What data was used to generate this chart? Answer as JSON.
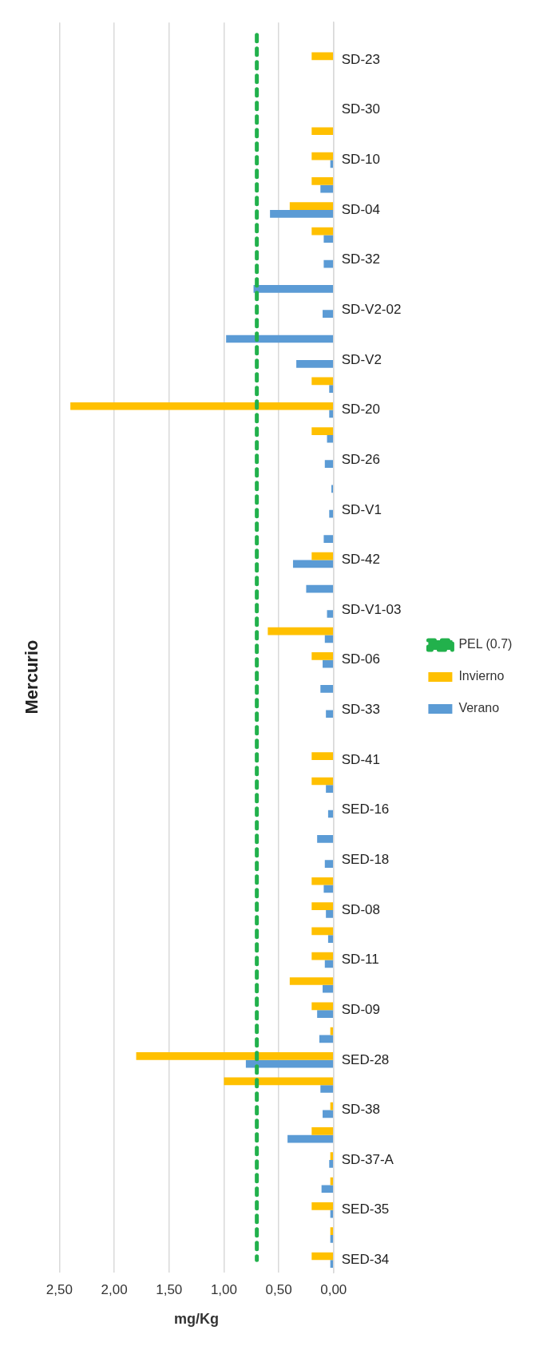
{
  "chart_data": {
    "type": "bar",
    "orientation": "horizontal",
    "title": "Mercurio",
    "xlabel": "mg/Kg",
    "categories": [
      null,
      "SD-23",
      null,
      "SD-30",
      null,
      "SD-10",
      null,
      "SD-04",
      null,
      "SD-32",
      null,
      "SD-V2-02",
      null,
      "SD-V2",
      null,
      "SD-20",
      null,
      "SD-26",
      null,
      "SD-V1",
      null,
      "SD-42",
      null,
      "SD-V1-03",
      null,
      "SD-06",
      null,
      "SD-33",
      null,
      "SD-41",
      null,
      "SED-16",
      null,
      "SED-18",
      null,
      "SD-08",
      null,
      "SD-11",
      null,
      "SD-09",
      null,
      "SED-28",
      null,
      "SD-38",
      null,
      "SD-37-A",
      null,
      "SED-35",
      null,
      "SED-34"
    ],
    "series": [
      {
        "name": "PEL (0.7)",
        "type": "line",
        "color": "#22b14c",
        "line_style": "dashed",
        "values": [
          0.7,
          0.7,
          0.7,
          0.7,
          0.7,
          0.7,
          0.7,
          0.7,
          0.7,
          0.7,
          0.7,
          0.7,
          0.7,
          0.7,
          0.7,
          0.7,
          0.7,
          0.7,
          0.7,
          0.7,
          0.7,
          0.7,
          0.7,
          0.7,
          0.7,
          0.7,
          0.7,
          0.7,
          0.7,
          0.7,
          0.7,
          0.7,
          0.7,
          0.7,
          0.7,
          0.7,
          0.7,
          0.7,
          0.7,
          0.7,
          0.7,
          0.7,
          0.7,
          0.7,
          0.7,
          0.7,
          0.7,
          0.7,
          0.7,
          0.7
        ]
      },
      {
        "name": "Invierno",
        "type": "bar",
        "color": "#ffc000",
        "values": [
          null,
          0.2,
          null,
          null,
          0.2,
          0.2,
          0.2,
          0.4,
          0.2,
          null,
          null,
          null,
          null,
          null,
          0.2,
          2.4,
          0.2,
          null,
          null,
          null,
          null,
          0.2,
          null,
          null,
          0.6,
          0.2,
          null,
          null,
          null,
          0.2,
          0.2,
          null,
          null,
          null,
          0.2,
          0.2,
          0.2,
          0.2,
          0.4,
          0.2,
          0.03,
          1.8,
          1.0,
          0.03,
          0.2,
          0.03,
          0.03,
          0.2,
          0.03,
          0.2
        ]
      },
      {
        "name": "Verano",
        "type": "bar",
        "color": "#5b9bd5",
        "values": [
          null,
          null,
          null,
          null,
          null,
          0.03,
          0.12,
          0.58,
          0.09,
          0.09,
          0.73,
          0.1,
          0.98,
          0.34,
          0.04,
          0.04,
          0.06,
          0.08,
          0.02,
          0.04,
          0.09,
          0.37,
          0.25,
          0.06,
          0.08,
          0.1,
          0.12,
          0.07,
          null,
          null,
          0.07,
          0.05,
          0.15,
          0.08,
          0.09,
          0.07,
          0.05,
          0.08,
          0.1,
          0.15,
          0.13,
          0.8,
          0.12,
          0.1,
          0.42,
          0.04,
          0.11,
          0.03,
          0.03,
          0.03
        ]
      }
    ],
    "xlim": [
      2.5,
      0
    ],
    "xticks": [
      {
        "value": 2.5,
        "label": "2,50"
      },
      {
        "value": 2,
        "label": "2,00"
      },
      {
        "value": 1.5,
        "label": "1,50"
      },
      {
        "value": 1,
        "label": "1,00"
      },
      {
        "value": 0.5,
        "label": "0,50"
      },
      {
        "value": 0,
        "label": "0,00"
      }
    ],
    "grid": "x",
    "legend": "right",
    "marker": "none"
  }
}
